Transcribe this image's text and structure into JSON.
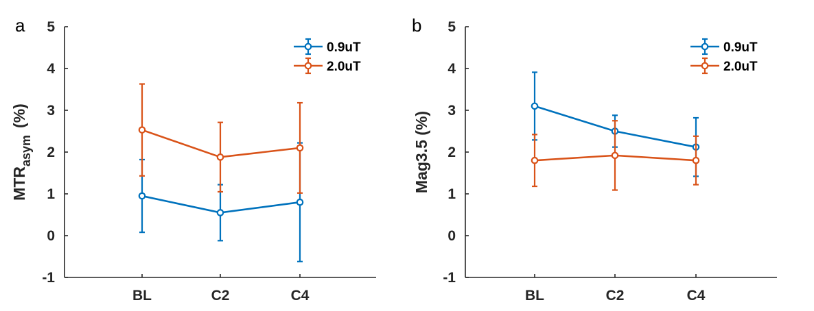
{
  "chart_data": [
    {
      "type": "line",
      "panel_label": "a",
      "ylabel": {
        "main": "MTR",
        "sub": "asym",
        "unit": "(%)"
      },
      "xlabel": "",
      "categories": [
        "BL",
        "C2",
        "C4"
      ],
      "ylim": [
        -1,
        5
      ],
      "yticks": [
        "-1",
        "0",
        "1",
        "2",
        "3",
        "4",
        "5"
      ],
      "legend_position": "top-right",
      "series": [
        {
          "name": "0.9uT",
          "color": "#0072BD",
          "values": [
            0.95,
            0.55,
            0.8
          ],
          "errors": [
            0.87,
            0.67,
            1.42
          ]
        },
        {
          "name": "2.0uT",
          "color": "#D95319",
          "values": [
            2.53,
            1.88,
            2.1
          ],
          "errors": [
            1.1,
            0.83,
            1.08
          ]
        }
      ]
    },
    {
      "type": "line",
      "panel_label": "b",
      "ylabel": {
        "main": "Mag3.5 (%)",
        "sub": "",
        "unit": ""
      },
      "xlabel": "",
      "categories": [
        "BL",
        "C2",
        "C4"
      ],
      "ylim": [
        -1,
        5
      ],
      "yticks": [
        "-1",
        "0",
        "1",
        "2",
        "3",
        "4",
        "5"
      ],
      "legend_position": "top-right",
      "series": [
        {
          "name": "0.9uT",
          "color": "#0072BD",
          "values": [
            3.1,
            2.5,
            2.12
          ],
          "errors": [
            0.81,
            0.38,
            0.7
          ]
        },
        {
          "name": "2.0uT",
          "color": "#D95319",
          "values": [
            1.8,
            1.92,
            1.8
          ],
          "errors": [
            0.62,
            0.83,
            0.58
          ]
        }
      ]
    }
  ]
}
